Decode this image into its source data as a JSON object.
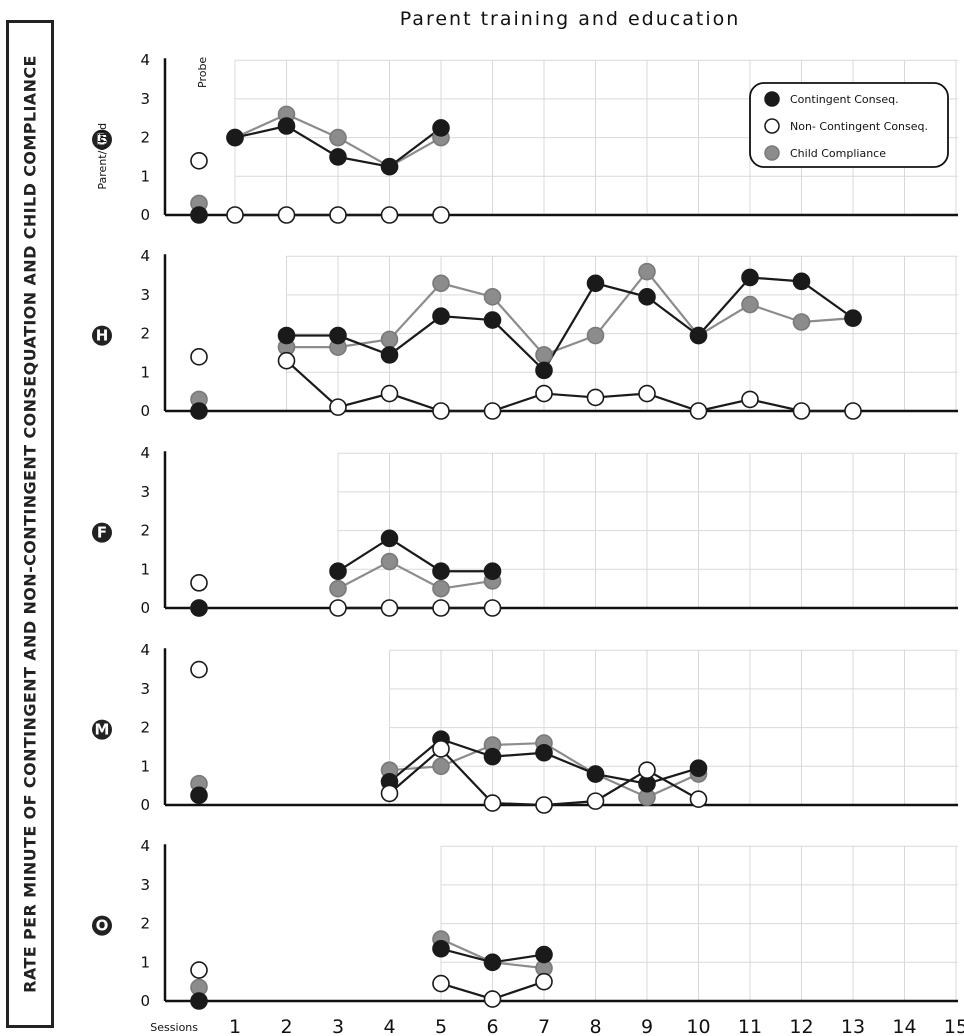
{
  "chart_data": {
    "type": "line",
    "title": "Parent training and education",
    "ylabel": "RATE PER MINUTE OF CONTINGENT AND NON-CONTINGENT CONSEQUATION AND CHILD COMPLIANCE",
    "xlabel": "Sessions",
    "x_ticks": [
      "1",
      "2",
      "3",
      "4",
      "5",
      "6",
      "7",
      "8",
      "9",
      "10",
      "11",
      "12",
      "13",
      "14",
      "15"
    ],
    "ylim": [
      0,
      4
    ],
    "y_ticks": [
      "0",
      "1",
      "2",
      "3",
      "4"
    ],
    "grid": true,
    "legend": {
      "placement": "top-right of first panel",
      "entries": [
        {
          "name": "Contingent Conseq.",
          "color": "#1a1a1a",
          "fill": "#1a1a1a"
        },
        {
          "name": "Non- Contingent Conseq.",
          "color": "#1a1a1a",
          "fill": "#ffffff"
        },
        {
          "name": "Child Compliance",
          "color": "#8c8c8c",
          "fill": "#8c8c8c"
        }
      ]
    },
    "probe_label": "Probe",
    "first_panel_prefix": "Parent/Child",
    "panels": [
      {
        "id": "B",
        "intervention_start": 1,
        "contingent": {
          "probe": 0.0,
          "points": [
            [
              1,
              2.0
            ],
            [
              2,
              2.3
            ],
            [
              3,
              1.5
            ],
            [
              4,
              1.25
            ],
            [
              5,
              2.25
            ]
          ]
        },
        "non_contingent": {
          "probe": 1.4,
          "points": [
            [
              1,
              0.0
            ],
            [
              2,
              0.0
            ],
            [
              3,
              0.0
            ],
            [
              4,
              0.0
            ],
            [
              5,
              0.0
            ]
          ]
        },
        "compliance": {
          "probe": 0.3,
          "points": [
            [
              1,
              2.0
            ],
            [
              2,
              2.6
            ],
            [
              3,
              2.0
            ],
            [
              4,
              1.25
            ],
            [
              5,
              2.0
            ]
          ]
        }
      },
      {
        "id": "H",
        "intervention_start": 2,
        "contingent": {
          "probe": 0.0,
          "points": [
            [
              2,
              1.95
            ],
            [
              3,
              1.95
            ],
            [
              4,
              1.45
            ],
            [
              5,
              2.45
            ],
            [
              6,
              2.35
            ],
            [
              7,
              1.05
            ],
            [
              8,
              3.3
            ],
            [
              9,
              2.95
            ],
            [
              10,
              1.95
            ],
            [
              11,
              3.45
            ],
            [
              12,
              3.35
            ],
            [
              13,
              2.4
            ]
          ]
        },
        "non_contingent": {
          "probe": 1.4,
          "points": [
            [
              2,
              1.3
            ],
            [
              3,
              0.1
            ],
            [
              4,
              0.45
            ],
            [
              5,
              0.0
            ],
            [
              6,
              0.0
            ],
            [
              7,
              0.45
            ],
            [
              8,
              0.35
            ],
            [
              9,
              0.45
            ],
            [
              10,
              0.0
            ],
            [
              11,
              0.3
            ],
            [
              12,
              0.0
            ],
            [
              13,
              0.0
            ]
          ]
        },
        "compliance": {
          "probe": 0.3,
          "points": [
            [
              2,
              1.65
            ],
            [
              3,
              1.65
            ],
            [
              4,
              1.85
            ],
            [
              5,
              3.3
            ],
            [
              6,
              2.95
            ],
            [
              7,
              1.45
            ],
            [
              8,
              1.95
            ],
            [
              9,
              3.6
            ],
            [
              10,
              1.95
            ],
            [
              11,
              2.75
            ],
            [
              12,
              2.3
            ],
            [
              13,
              2.4
            ]
          ]
        }
      },
      {
        "id": "F",
        "intervention_start": 3,
        "contingent": {
          "probe": 0.0,
          "points": [
            [
              3,
              0.95
            ],
            [
              4,
              1.8
            ],
            [
              5,
              0.95
            ],
            [
              6,
              0.95
            ]
          ]
        },
        "non_contingent": {
          "probe": 0.65,
          "points": [
            [
              3,
              0.0
            ],
            [
              4,
              0.0
            ],
            [
              5,
              0.0
            ],
            [
              6,
              0.0
            ]
          ]
        },
        "compliance": {
          "probe": 0.0,
          "points": [
            [
              3,
              0.5
            ],
            [
              4,
              1.2
            ],
            [
              5,
              0.5
            ],
            [
              6,
              0.7
            ]
          ]
        }
      },
      {
        "id": "M",
        "intervention_start": 4,
        "contingent": {
          "probe": 0.25,
          "points": [
            [
              4,
              0.6
            ],
            [
              5,
              1.7
            ],
            [
              6,
              1.25
            ],
            [
              7,
              1.35
            ],
            [
              8,
              0.8
            ],
            [
              9,
              0.55
            ],
            [
              10,
              0.95
            ]
          ]
        },
        "non_contingent": {
          "probe": 3.5,
          "points": [
            [
              4,
              0.3
            ],
            [
              5,
              1.45
            ],
            [
              6,
              0.05
            ],
            [
              7,
              0.0
            ],
            [
              8,
              0.1
            ],
            [
              9,
              0.9
            ],
            [
              10,
              0.15
            ]
          ]
        },
        "compliance": {
          "probe": 0.55,
          "points": [
            [
              4,
              0.9
            ],
            [
              5,
              1.0
            ],
            [
              6,
              1.55
            ],
            [
              7,
              1.6
            ],
            [
              8,
              0.8
            ],
            [
              9,
              0.2
            ],
            [
              10,
              0.8
            ]
          ]
        }
      },
      {
        "id": "O",
        "intervention_start": 5,
        "contingent": {
          "probe": 0.0,
          "points": [
            [
              5,
              1.35
            ],
            [
              6,
              1.0
            ],
            [
              7,
              1.2
            ]
          ]
        },
        "non_contingent": {
          "probe": 0.8,
          "points": [
            [
              5,
              0.45
            ],
            [
              6,
              0.05
            ],
            [
              7,
              0.5
            ]
          ]
        },
        "compliance": {
          "probe": 0.35,
          "points": [
            [
              5,
              1.6
            ],
            [
              6,
              1.0
            ],
            [
              7,
              0.85
            ]
          ]
        }
      }
    ]
  }
}
